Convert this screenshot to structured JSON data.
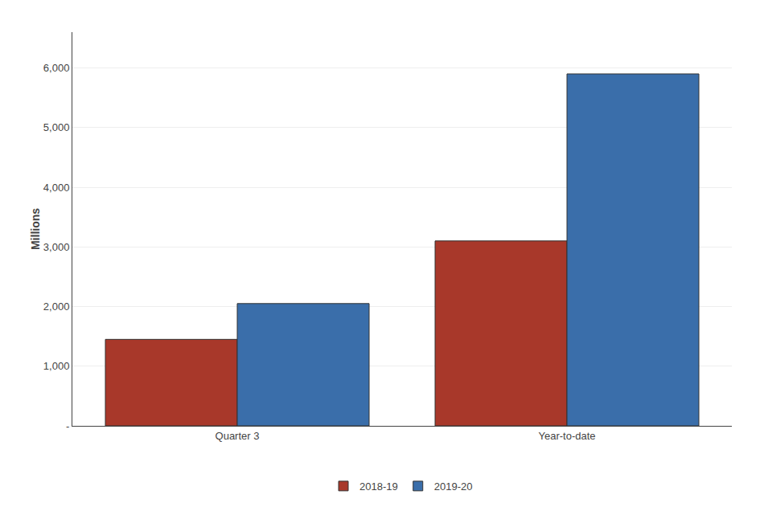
{
  "chart_data": {
    "type": "bar",
    "categories": [
      "Quarter 3",
      "Year-to-date"
    ],
    "series": [
      {
        "name": "2018-19",
        "color": "#A8382A",
        "values": [
          1450,
          3100
        ]
      },
      {
        "name": "2019-20",
        "color": "#3A6EAA",
        "values": [
          2050,
          5900
        ]
      }
    ],
    "ylabel": "Millions",
    "ylim": [
      0,
      6600
    ],
    "yticks": [
      {
        "value": 0,
        "label": "-"
      },
      {
        "value": 1000,
        "label": "1,000"
      },
      {
        "value": 2000,
        "label": "2,000"
      },
      {
        "value": 3000,
        "label": "3,000"
      },
      {
        "value": 4000,
        "label": "4,000"
      },
      {
        "value": 5000,
        "label": "5,000"
      },
      {
        "value": 6000,
        "label": "6,000"
      }
    ],
    "grid": true,
    "legend": "bottom"
  }
}
